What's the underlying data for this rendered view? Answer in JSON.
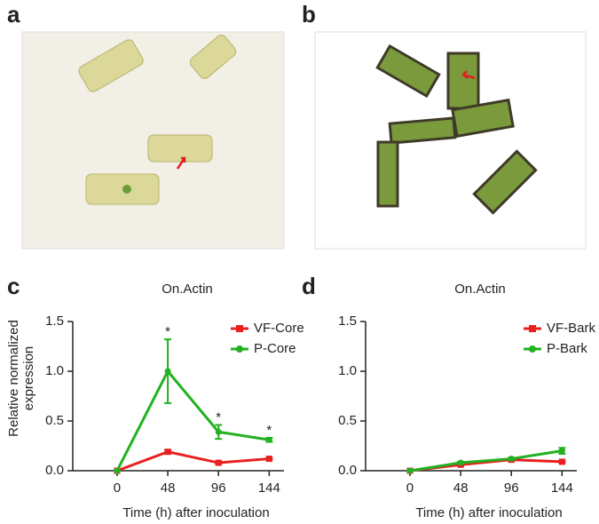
{
  "panels": [
    "a",
    "b",
    "c",
    "d"
  ],
  "chart_data": [
    {
      "type": "line",
      "title": "On.Actin",
      "ylabel": [
        "Relative normalized",
        "expression"
      ],
      "xlabel": "Time (h) after inoculation",
      "x": [
        0,
        48,
        96,
        144
      ],
      "xlim": [
        -42,
        158
      ],
      "xticks": [
        0,
        48,
        96,
        144
      ],
      "ylim": [
        0,
        1.5
      ],
      "yticks": [
        {
          "value": 0,
          "label": "0.0"
        },
        0.5,
        {
          "value": 1,
          "label": "1.0"
        },
        1.5
      ],
      "legend": "upper right",
      "series": [
        {
          "name": "VF-Core",
          "color": "#e8201f",
          "marker": "square",
          "values": [
            0,
            0.19,
            0.08,
            0.12
          ],
          "errors": [
            0,
            0.02,
            0.01,
            0.01
          ]
        },
        {
          "name": "P-Core",
          "color": "#22b120",
          "marker": "circle",
          "values": [
            0,
            1.0,
            0.39,
            0.31
          ],
          "errors": [
            0,
            0.32,
            0.07,
            0.02
          ]
        }
      ],
      "annotations": [
        {
          "text": "*",
          "x": 48
        },
        {
          "text": "*",
          "x": 96
        },
        {
          "text": "*",
          "x": 144
        }
      ]
    },
    {
      "type": "line",
      "title": "On.Actin",
      "xlabel": "Time (h) after inoculation",
      "x": [
        0,
        48,
        96,
        144
      ],
      "xlim": [
        -42,
        158
      ],
      "xticks": [
        0,
        48,
        96,
        144
      ],
      "ylim": [
        0,
        1.5
      ],
      "yticks": [
        {
          "value": 0,
          "label": "0.0"
        },
        0.5,
        {
          "value": 1,
          "label": "1.0"
        },
        1.5
      ],
      "legend": "upper right",
      "series": [
        {
          "name": "VF-Bark",
          "color": "#e8201f",
          "marker": "square",
          "values": [
            0,
            0.06,
            0.11,
            0.09
          ],
          "errors": [
            0,
            0.01,
            0.01,
            0.01
          ]
        },
        {
          "name": "P-Bark",
          "color": "#22b120",
          "marker": "circle",
          "values": [
            0,
            0.08,
            0.12,
            0.2
          ],
          "errors": [
            0,
            0.01,
            0.01,
            0.03
          ]
        }
      ]
    }
  ]
}
